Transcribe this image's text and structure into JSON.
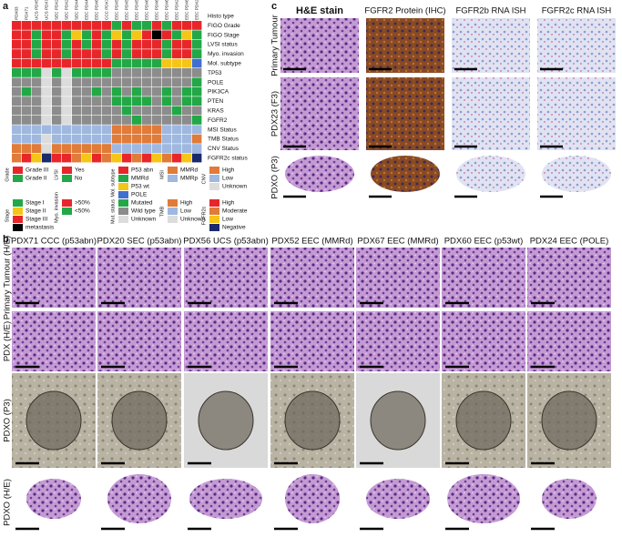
{
  "panel_a": {
    "letter": "a",
    "samples": [
      {
        "name": "PDX03",
        "color": "#d62728"
      },
      {
        "name": "PDX71",
        "color": "#d62728"
      },
      {
        "name": "UCS PDX56",
        "color": "#d62728"
      },
      {
        "name": "UCS PDX70",
        "color": "#d62728"
      },
      {
        "name": "SEC PDX20",
        "color": "#d62728"
      },
      {
        "name": "SEC PDX23",
        "color": "#d62728"
      },
      {
        "name": "SEC PDX45",
        "color": "#222"
      },
      {
        "name": "EEC PDX48",
        "color": "#222"
      },
      {
        "name": "EEC PDX61",
        "color": "#222"
      },
      {
        "name": "CCC PDX71",
        "color": "#d62728"
      },
      {
        "name": "EEC PDX52",
        "color": "#222"
      },
      {
        "name": "EEC PDX53",
        "color": "#222"
      },
      {
        "name": "EEC PDX58",
        "color": "#222"
      },
      {
        "name": "EEC PDX67",
        "color": "#222"
      },
      {
        "name": "EEC PDX68",
        "color": "#d62728"
      },
      {
        "name": "EEC PDX69",
        "color": "#222"
      },
      {
        "name": "EEC PDX21",
        "color": "#222"
      },
      {
        "name": "EEC PDX60",
        "color": "#222"
      },
      {
        "name": "EEC PDX24",
        "color": "#222"
      }
    ],
    "header_row": "Histo type",
    "rows": [
      {
        "label": "FIGO Grade",
        "legend": "Grade",
        "cells": [
          "Grade III",
          "Grade III",
          "Grade III",
          "Grade III",
          "Grade III",
          "Grade III",
          "Grade III",
          "Grade III",
          "Grade III",
          "Grade III",
          "Grade II",
          "Grade III",
          "Grade II",
          "Grade II",
          "Grade III",
          "Grade II",
          "Grade III",
          "Grade III",
          "Grade III"
        ]
      },
      {
        "label": "FIGO Stage",
        "legend": "Stage",
        "cells": [
          "Stage III",
          "Stage III",
          "Stage I",
          "Stage III",
          "Stage III",
          "Stage I",
          "Stage II",
          "Stage I",
          "Stage III",
          "Stage I",
          "Stage II",
          "Stage I",
          "Stage II",
          "Stage III",
          "metastasis",
          "Stage III",
          "Stage I",
          "Stage II",
          "Stage I"
        ]
      },
      {
        "label": "LVSI status",
        "legend": "LVSI",
        "cells": [
          "Yes",
          "Yes",
          "No",
          "Yes",
          "Yes",
          "No",
          "Yes",
          "No",
          "Yes",
          "No",
          "Yes",
          "No",
          "Yes",
          "Yes",
          "Yes",
          "No",
          "Yes",
          "Yes",
          "No"
        ]
      },
      {
        "label": "Myo. invasion",
        "legend": "Myo. invasion",
        "cells": [
          ">50%",
          ">50%",
          "<50%",
          ">50%",
          ">50%",
          "<50%",
          ">50%",
          ">50%",
          ">50%",
          "<50%",
          ">50%",
          "<50%",
          ">50%",
          ">50%",
          ">50%",
          "<50%",
          ">50%",
          ">50%",
          "<50%"
        ]
      },
      {
        "label": "Mol. subtype",
        "legend": "Mol. subtype",
        "cells": [
          "P53 abn",
          "P53 abn",
          "P53 abn",
          "P53 abn",
          "P53 abn",
          "P53 abn",
          "P53 abn",
          "P53 abn",
          "P53 abn",
          "P53 abn",
          "MMRd",
          "MMRd",
          "MMRd",
          "MMRd",
          "MMRd",
          "P53 wt",
          "P53 wt",
          "P53 wt",
          "POLE"
        ]
      },
      {
        "label": "TP53",
        "legend": "Mut. status",
        "cells": [
          "Mutated",
          "Mutated",
          "Mutated",
          "Unknown",
          "Mutated",
          "Unknown",
          "Mutated",
          "Mutated",
          "Mutated",
          "Mutated",
          "Wild type",
          "Wild type",
          "Wild type",
          "Wild type",
          "Wild type",
          "Wild type",
          "Wild type",
          "Wild type",
          "Wild type"
        ]
      },
      {
        "label": "POLE",
        "legend": "Mut. status",
        "cells": [
          "Wild type",
          "Wild type",
          "Wild type",
          "Unknown",
          "Wild type",
          "Unknown",
          "Wild type",
          "Wild type",
          "Wild type",
          "Wild type",
          "Wild type",
          "Wild type",
          "Wild type",
          "Wild type",
          "Wild type",
          "Wild type",
          "Wild type",
          "Wild type",
          "Mutated"
        ]
      },
      {
        "label": "PIK3CA",
        "legend": "Mut. status",
        "cells": [
          "Wild type",
          "Mutated",
          "Wild type",
          "Unknown",
          "Wild type",
          "Unknown",
          "Wild type",
          "Wild type",
          "Mutated",
          "Wild type",
          "Mutated",
          "Wild type",
          "Mutated",
          "Wild type",
          "Wild type",
          "Mutated",
          "Wild type",
          "Mutated",
          "Mutated"
        ]
      },
      {
        "label": "PTEN",
        "legend": "Mut. status",
        "cells": [
          "Wild type",
          "Wild type",
          "Wild type",
          "Unknown",
          "Wild type",
          "Unknown",
          "Wild type",
          "Wild type",
          "Wild type",
          "Wild type",
          "Mutated",
          "Mutated",
          "Mutated",
          "Mutated",
          "Wild type",
          "Mutated",
          "Wild type",
          "Mutated",
          "Mutated"
        ]
      },
      {
        "label": "KRAS",
        "legend": "Mut. status",
        "cells": [
          "Wild type",
          "Wild type",
          "Wild type",
          "Unknown",
          "Wild type",
          "Unknown",
          "Wild type",
          "Wild type",
          "Wild type",
          "Wild type",
          "Wild type",
          "Mutated",
          "Wild type",
          "Wild type",
          "Wild type",
          "Wild type",
          "Mutated",
          "Wild type",
          "Wild type"
        ]
      },
      {
        "label": "FGFR2",
        "legend": "Mut. status",
        "cells": [
          "Wild type",
          "Wild type",
          "Wild type",
          "Unknown",
          "Wild type",
          "Unknown",
          "Wild type",
          "Wild type",
          "Wild type",
          "Wild type",
          "Wild type",
          "Wild type",
          "Mutated",
          "Wild type",
          "Wild type",
          "Wild type",
          "Wild type",
          "Wild type",
          "Mutated"
        ]
      },
      {
        "label": "MSI Status",
        "legend": "MSI",
        "cells": [
          "MMRp",
          "MMRp",
          "MMRp",
          "MMRp",
          "MMRp",
          "MMRp",
          "MMRp",
          "MMRp",
          "MMRp",
          "MMRp",
          "MMRd",
          "MMRd",
          "MMRd",
          "MMRd",
          "MMRd",
          "MMRp",
          "MMRp",
          "MMRp",
          "MMRp"
        ]
      },
      {
        "label": "TMB Status",
        "legend": "TMB",
        "cells": [
          "Low",
          "Low",
          "Low",
          "Unknown",
          "Low",
          "Low",
          "Low",
          "Low",
          "Low",
          "Low",
          "High",
          "High",
          "High",
          "High",
          "High",
          "Low",
          "Low",
          "Low",
          "High"
        ]
      },
      {
        "label": "CNV Status",
        "legend": "CNV",
        "cells": [
          "High",
          "High",
          "High",
          "Unknown",
          "High",
          "High",
          "High",
          "High",
          "High",
          "High",
          "Low",
          "Low",
          "Low",
          "Low",
          "Low",
          "Low",
          "Low",
          "Low",
          "Low"
        ]
      },
      {
        "label": "FGFR2c status",
        "legend": "FGFR2c",
        "cells": [
          "Moderate",
          "High",
          "Low",
          "Negative",
          "High",
          "High",
          "Moderate",
          "Low",
          "High",
          "Moderate",
          "Low",
          "High",
          "Moderate",
          "High",
          "Low",
          "Moderate",
          "High",
          "Low",
          "Negative"
        ]
      }
    ],
    "legend": [
      {
        "title": "Grade",
        "items": [
          {
            "label": "Grade III",
            "color": "#e8262a"
          },
          {
            "label": "Grade II",
            "color": "#22a846"
          }
        ]
      },
      {
        "title": "LVSI",
        "items": [
          {
            "label": "Yes",
            "color": "#e8262a"
          },
          {
            "label": "No",
            "color": "#22a846"
          }
        ]
      },
      {
        "title": "Mol. subtype",
        "items": [
          {
            "label": "P53 abn",
            "color": "#e8262a"
          },
          {
            "label": "MMRd",
            "color": "#22a846"
          },
          {
            "label": "P53 wt",
            "color": "#f5c518"
          },
          {
            "label": "POLE",
            "color": "#3f6fd1"
          }
        ]
      },
      {
        "title": "MSI",
        "items": [
          {
            "label": "MMRd",
            "color": "#e07b39"
          },
          {
            "label": "MMRp",
            "color": "#9fb8e0"
          }
        ]
      },
      {
        "title": "CNV",
        "items": [
          {
            "label": "High",
            "color": "#e07b39"
          },
          {
            "label": "Low",
            "color": "#9fb8e0"
          },
          {
            "label": "Unknown",
            "color": "#dcdcdc"
          }
        ]
      },
      {
        "title": "Stage",
        "items": [
          {
            "label": "Stage I",
            "color": "#22a846"
          },
          {
            "label": "Stage II",
            "color": "#f5c518"
          },
          {
            "label": "Stage III",
            "color": "#e8262a"
          },
          {
            "label": "metastasis",
            "color": "#000000"
          }
        ]
      },
      {
        "title": "Myo. invasion",
        "items": [
          {
            "label": ">50%",
            "color": "#e8262a"
          },
          {
            "label": "<50%",
            "color": "#22a846"
          }
        ]
      },
      {
        "title": "Mut. status",
        "items": [
          {
            "label": "Mutated",
            "color": "#22a846"
          },
          {
            "label": "Wild type",
            "color": "#8c8c8c"
          },
          {
            "label": "Unknown",
            "color": "#dcdcdc"
          }
        ]
      },
      {
        "title": "TMB",
        "items": [
          {
            "label": "High",
            "color": "#e07b39"
          },
          {
            "label": "Low",
            "color": "#9fb8e0"
          },
          {
            "label": "Unknown",
            "color": "#dcdcdc"
          }
        ]
      },
      {
        "title": "FGFR2c",
        "items": [
          {
            "label": "High",
            "color": "#e8262a"
          },
          {
            "label": "Moderate",
            "color": "#e07b39"
          },
          {
            "label": "Low",
            "color": "#f5c518"
          },
          {
            "label": "Negative",
            "color": "#1a2a6c"
          }
        ]
      }
    ]
  },
  "panel_b": {
    "letter": "b",
    "columns": [
      "PDX71 CCC (p53abn)",
      "PDX20 SEC (p53abn)",
      "PDX56 UCS (p53abn)",
      "PDX52 EEC (MMRd)",
      "PDX67 EEC (MMRd)",
      "PDX60 EEC (p53wt)",
      "PDX24 EEC (POLE)"
    ],
    "rows": [
      "Primary Tumour (H/E)",
      "PDX (H/E)",
      "PDXO (P3)",
      "PDXO (H/E)"
    ]
  },
  "panel_c": {
    "letter": "c",
    "columns": [
      "H&E stain",
      "FGFR2 Protein (IHC)",
      "FGFR2b RNA ISH",
      "FGFR2c RNA ISH"
    ],
    "rows": [
      "Primary Tumour",
      "PDX23 (F3)",
      "PDXO (P3)"
    ]
  }
}
